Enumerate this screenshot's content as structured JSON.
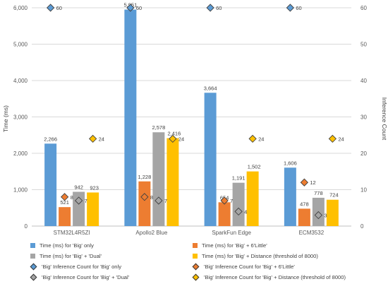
{
  "chart_data": {
    "type": "bar",
    "categories": [
      "STM32L4R5ZI",
      "Apollo2 Blue",
      "SparkFun Edge",
      "ECM3532"
    ],
    "ylabel": "Time (ms)",
    "y2label": "Inference Count",
    "ylim": [
      0,
      6000
    ],
    "y2lim": [
      0,
      60
    ],
    "yticks": [
      "0",
      "1,000",
      "2,000",
      "3,000",
      "4,000",
      "5,000",
      "6,000"
    ],
    "y2ticks": [
      "0",
      "10",
      "20",
      "30",
      "40",
      "50",
      "60"
    ],
    "grid": true,
    "legend_position": "bottom",
    "bar_series": [
      {
        "name": "Time (ms) for 'Big' only",
        "color": "#5b9bd5",
        "values": [
          2266,
          5951,
          3664,
          1606
        ],
        "labels": [
          "2,266",
          "5,951",
          "3,664",
          "1,606"
        ]
      },
      {
        "name": "Time (ms) for 'Big' + 6'Little'",
        "color": "#ed7d31",
        "values": [
          521,
          1228,
          654,
          478
        ],
        "labels": [
          "521",
          "1,228",
          "654",
          "478"
        ]
      },
      {
        "name": "Time (ms) for 'Big' + 'Dual'",
        "color": "#a5a5a5",
        "values": [
          942,
          2578,
          1191,
          778
        ],
        "labels": [
          "942",
          "2,578",
          "1,191",
          "778"
        ]
      },
      {
        "name": "Time (ms) for 'Big' + Distance (threshold of 8000)",
        "color": "#ffc000",
        "values": [
          923,
          2416,
          1502,
          724
        ],
        "labels": [
          "923",
          "2,416",
          "1,502",
          "724"
        ]
      }
    ],
    "marker_series": [
      {
        "name": "'Big' Inference Count for 'Big' only",
        "color": "#5b9bd5",
        "values": [
          60,
          60,
          60,
          60
        ]
      },
      {
        "name": "'Big' Inference Count for 'Big' + 6'Little'",
        "color": "#ed7d31",
        "values": [
          8,
          8,
          7,
          12
        ]
      },
      {
        "name": "'Big' Inference Count for 'Big' + 'Dual'",
        "color": "#a5a5a5",
        "values": [
          7,
          7,
          4,
          3
        ]
      },
      {
        "name": "'Big' Inference Count for 'Big' + Distance (threshold of 8000)",
        "color": "#ffc000",
        "values": [
          24,
          24,
          24,
          24
        ]
      }
    ]
  }
}
